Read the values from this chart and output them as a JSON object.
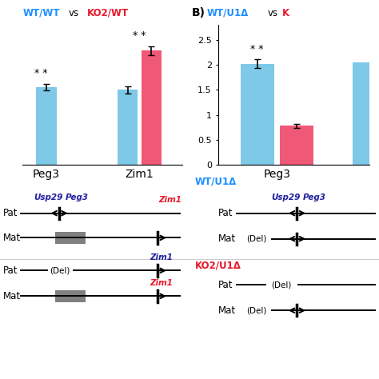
{
  "panel_A": {
    "title_left": "WT/WT",
    "title_vs": "vs",
    "title_right": "KO2/WT",
    "bar1_color": "#7EC8E8",
    "bar2_color": "#F05878",
    "peg3_val": 1.55,
    "peg3_err": 0.07,
    "zim1_blue_val": 1.5,
    "zim1_blue_err": 0.07,
    "zim1_red_val": 2.28,
    "zim1_red_err": 0.09,
    "ylim": [
      0,
      2.8
    ]
  },
  "panel_B": {
    "title_label": "B)",
    "title_left": "WT/U1Δ",
    "title_vs": "vs",
    "title_right": "K",
    "bar1_color": "#7EC8E8",
    "bar2_color": "#F05878",
    "peg3_blue_val": 2.02,
    "peg3_blue_err": 0.09,
    "peg3_red_val": 0.78,
    "peg3_red_err": 0.04,
    "zim1_blue_val": 2.05,
    "ylim": [
      0,
      2.8
    ],
    "yticks": [
      0,
      0.5,
      1.0,
      1.5,
      2.0,
      2.5
    ]
  },
  "colors": {
    "blue_title": "#1E90FF",
    "red_title": "#E8192C",
    "dark_blue": "#2020A0",
    "gray": "#808080"
  }
}
